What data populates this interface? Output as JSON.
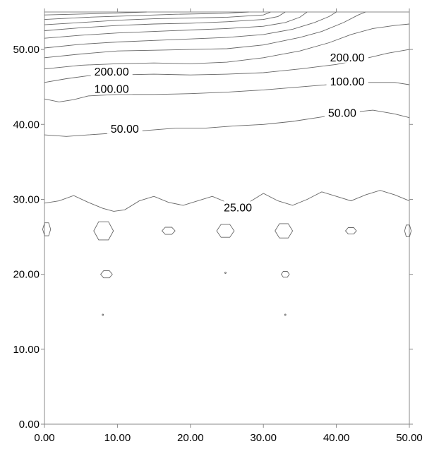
{
  "chart_data": {
    "type": "contour",
    "title": "",
    "xlabel": "",
    "ylabel": "",
    "xlim": [
      0,
      50
    ],
    "ylim": [
      0,
      55
    ],
    "grid": false,
    "x_ticks": [
      "0.00",
      "10.00",
      "20.00",
      "30.00",
      "40.00",
      "50.00"
    ],
    "y_ticks": [
      "0.00",
      "10.00",
      "20.00",
      "30.00",
      "40.00",
      "50.00"
    ],
    "contour_levels": [
      25,
      50,
      100,
      200
    ],
    "line_color": "#666666",
    "contours": [
      {
        "level": 25,
        "label": "25.00",
        "label_at": [
          26.5,
          28.7
        ],
        "points": [
          [
            0,
            29.5
          ],
          [
            2,
            29.8
          ],
          [
            4,
            30.5
          ],
          [
            6,
            29.6
          ],
          [
            8,
            28.8
          ],
          [
            9.5,
            28.4
          ],
          [
            11,
            28.6
          ],
          [
            13,
            29.8
          ],
          [
            15,
            30.4
          ],
          [
            17,
            29.6
          ],
          [
            19,
            29.2
          ],
          [
            21,
            29.8
          ],
          [
            23,
            30.4
          ],
          [
            24.5,
            29.8
          ],
          [
            26,
            28.8
          ],
          [
            28,
            29.6
          ],
          [
            30,
            30.8
          ],
          [
            32,
            29.8
          ],
          [
            34,
            29.2
          ],
          [
            36,
            30.0
          ],
          [
            38,
            31.0
          ],
          [
            40,
            30.4
          ],
          [
            42,
            29.8
          ],
          [
            44,
            30.6
          ],
          [
            46,
            31.2
          ],
          [
            48,
            30.6
          ],
          [
            50,
            29.8
          ]
        ]
      },
      {
        "level": 50,
        "label": "50.00",
        "label_at": [
          11,
          39.2
        ],
        "points": [
          [
            0,
            38.6
          ],
          [
            3,
            38.4
          ],
          [
            6,
            38.6
          ],
          [
            9,
            38.8
          ],
          [
            14,
            39.2
          ],
          [
            18,
            39.5
          ],
          [
            22,
            39.5
          ],
          [
            26,
            39.8
          ],
          [
            30,
            40.0
          ],
          [
            34,
            40.4
          ],
          [
            38,
            41.0
          ],
          [
            42,
            41.6
          ],
          [
            45,
            41.9
          ],
          [
            48,
            41.4
          ],
          [
            50,
            40.9
          ]
        ]
      },
      {
        "level": 100,
        "label": "100.00",
        "label_at": [
          9.2,
          44.5
        ],
        "points": [
          [
            0,
            43.4
          ],
          [
            2,
            43.0
          ],
          [
            4,
            43.3
          ],
          [
            6,
            43.8
          ],
          [
            10,
            44.0
          ],
          [
            15,
            44.0
          ],
          [
            20,
            44.1
          ],
          [
            25,
            44.3
          ],
          [
            30,
            44.6
          ],
          [
            35,
            45.0
          ],
          [
            40,
            45.4
          ],
          [
            44,
            45.6
          ],
          [
            48,
            45.6
          ],
          [
            50,
            45.3
          ]
        ]
      },
      {
        "level": 200,
        "label": "200.00",
        "label_at": [
          9.2,
          46.8
        ],
        "points": [
          [
            0,
            45.6
          ],
          [
            3,
            46.1
          ],
          [
            6,
            46.5
          ],
          [
            10,
            46.6
          ],
          [
            15,
            46.7
          ],
          [
            20,
            46.6
          ],
          [
            25,
            46.7
          ],
          [
            30,
            46.9
          ],
          [
            35,
            47.4
          ],
          [
            40,
            48.0
          ],
          [
            44,
            48.8
          ],
          [
            47,
            49.5
          ],
          [
            50,
            50.0
          ]
        ]
      },
      {
        "level": null,
        "points": [
          [
            0,
            47.4
          ],
          [
            5,
            47.9
          ],
          [
            10,
            48.1
          ],
          [
            15,
            48.2
          ],
          [
            20,
            48.1
          ],
          [
            25,
            48.3
          ],
          [
            30,
            48.9
          ],
          [
            35,
            49.8
          ],
          [
            39,
            50.9
          ],
          [
            42,
            52.0
          ],
          [
            45,
            52.8
          ],
          [
            48,
            53.2
          ],
          [
            50,
            53.4
          ]
        ]
      },
      {
        "level": null,
        "points": [
          [
            0,
            48.9
          ],
          [
            5,
            49.4
          ],
          [
            10,
            49.8
          ],
          [
            15,
            49.9
          ],
          [
            20,
            50.0
          ],
          [
            25,
            50.1
          ],
          [
            30,
            50.6
          ],
          [
            35,
            51.6
          ],
          [
            38,
            52.4
          ],
          [
            41,
            53.6
          ],
          [
            43,
            54.6
          ],
          [
            44,
            55.0
          ]
        ]
      },
      {
        "level": null,
        "points": [
          [
            0,
            50.2
          ],
          [
            5,
            50.7
          ],
          [
            10,
            51.0
          ],
          [
            15,
            51.2
          ],
          [
            20,
            51.4
          ],
          [
            25,
            51.6
          ],
          [
            30,
            52.0
          ],
          [
            34,
            52.7
          ],
          [
            37,
            53.6
          ],
          [
            39,
            54.4
          ],
          [
            40,
            55.0
          ]
        ]
      },
      {
        "level": null,
        "points": [
          [
            0,
            51.5
          ],
          [
            5,
            51.9
          ],
          [
            10,
            52.2
          ],
          [
            15,
            52.4
          ],
          [
            20,
            52.6
          ],
          [
            25,
            52.8
          ],
          [
            30,
            53.1
          ],
          [
            33,
            53.6
          ],
          [
            35,
            54.3
          ],
          [
            36,
            55.0
          ]
        ]
      },
      {
        "level": null,
        "points": [
          [
            0,
            52.5
          ],
          [
            5,
            52.9
          ],
          [
            10,
            53.2
          ],
          [
            15,
            53.4
          ],
          [
            20,
            53.5
          ],
          [
            25,
            53.7
          ],
          [
            30,
            54.0
          ],
          [
            32,
            54.4
          ],
          [
            33,
            55.0
          ]
        ]
      },
      {
        "level": null,
        "points": [
          [
            0,
            53.3
          ],
          [
            5,
            53.6
          ],
          [
            10,
            53.9
          ],
          [
            15,
            54.1
          ],
          [
            20,
            54.2
          ],
          [
            25,
            54.3
          ],
          [
            30,
            54.6
          ],
          [
            31,
            55.0
          ]
        ]
      },
      {
        "level": null,
        "points": [
          [
            0,
            54.0
          ],
          [
            6,
            54.3
          ],
          [
            12,
            54.5
          ],
          [
            18,
            54.7
          ],
          [
            24,
            54.8
          ],
          [
            28,
            55.0
          ]
        ]
      },
      {
        "level": null,
        "points": [
          [
            0,
            54.6
          ],
          [
            8,
            54.8
          ],
          [
            14,
            55.0
          ]
        ]
      }
    ],
    "closed_contours": [
      {
        "cx": 0.3,
        "cy": 26.0,
        "rx": 0.55,
        "ry": 1.0
      },
      {
        "cx": 8.1,
        "cy": 25.8,
        "rx": 1.35,
        "ry": 1.4
      },
      {
        "cx": 17.0,
        "cy": 25.8,
        "rx": 0.9,
        "ry": 0.55
      },
      {
        "cx": 24.8,
        "cy": 25.8,
        "rx": 1.2,
        "ry": 1.0
      },
      {
        "cx": 32.8,
        "cy": 25.8,
        "rx": 1.2,
        "ry": 1.1
      },
      {
        "cx": 42.0,
        "cy": 25.8,
        "rx": 0.75,
        "ry": 0.5
      },
      {
        "cx": 49.8,
        "cy": 25.8,
        "rx": 0.45,
        "ry": 0.9
      },
      {
        "cx": 8.5,
        "cy": 20.0,
        "rx": 0.8,
        "ry": 0.55
      },
      {
        "cx": 33.0,
        "cy": 20.0,
        "rx": 0.55,
        "ry": 0.45
      },
      {
        "cx": 24.8,
        "cy": 20.2,
        "rx": 0.1,
        "ry": 0.1
      },
      {
        "cx": 8.0,
        "cy": 14.6,
        "rx": 0.1,
        "ry": 0.1
      },
      {
        "cx": 33.0,
        "cy": 14.6,
        "rx": 0.1,
        "ry": 0.1
      }
    ],
    "extra_labels": [
      {
        "text": "200.00",
        "x": 41.5,
        "y": 48.7
      },
      {
        "text": "100.00",
        "x": 41.5,
        "y": 45.5
      },
      {
        "text": "50.00",
        "x": 40.8,
        "y": 41.3
      }
    ]
  }
}
